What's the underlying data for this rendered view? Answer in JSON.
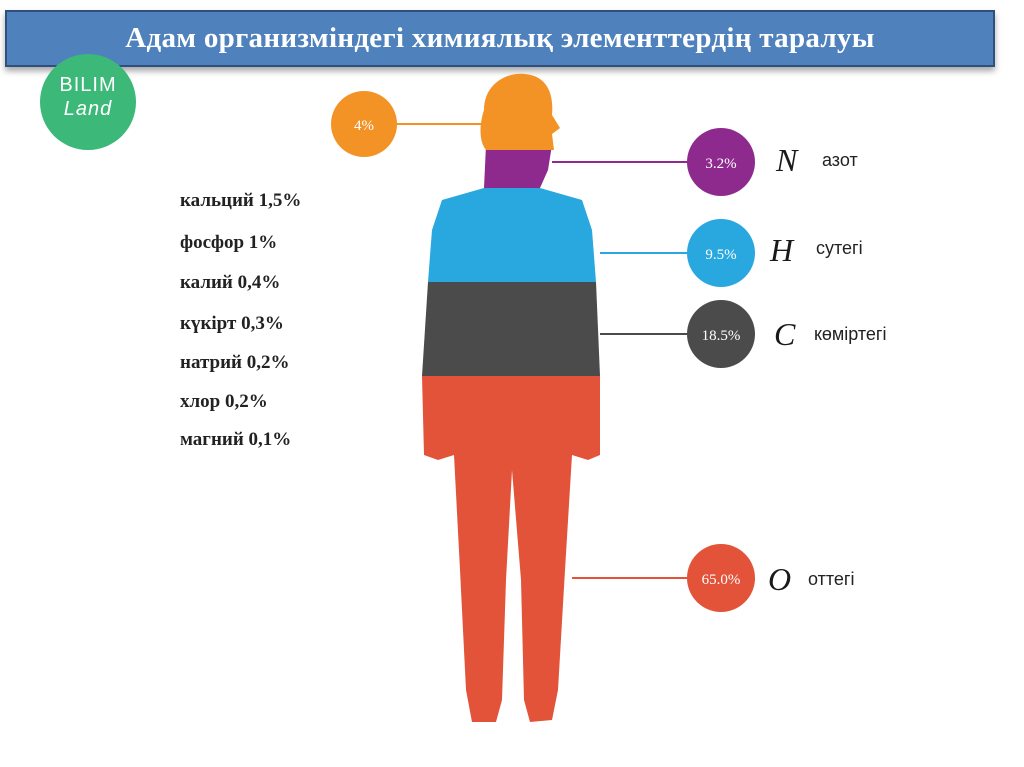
{
  "title": "Адам организміндегі химиялық элементтердің таралуы",
  "logo": {
    "line1": "BILIM",
    "line2": "Land"
  },
  "minor_elements": [
    "кальций  1,5%",
    "фосфор  1%",
    "калий  0,4%",
    "күкірт  0,3%",
    "натрий  0,2%",
    "хлор  0,2%",
    "магний  0,1%"
  ],
  "main_elements": [
    {
      "percent": "4%",
      "symbol": "",
      "name": "",
      "color": "#f39325"
    },
    {
      "percent": "3.2%",
      "symbol": "N",
      "name": "азот",
      "color": "#8e2a8e"
    },
    {
      "percent": "9.5%",
      "symbol": "H",
      "name": "сутегі",
      "color": "#29a8e0"
    },
    {
      "percent": "18.5%",
      "symbol": "C",
      "name": "көміртегі",
      "color": "#4b4b4b"
    },
    {
      "percent": "65.0%",
      "symbol": "O",
      "name": "оттегі",
      "color": "#e2533a"
    }
  ],
  "body_colors": {
    "head": "#f39325",
    "neck": "#8e2a8e",
    "chest": "#29a8e0",
    "abdomen": "#4b4b4b",
    "legs": "#e2533a"
  }
}
